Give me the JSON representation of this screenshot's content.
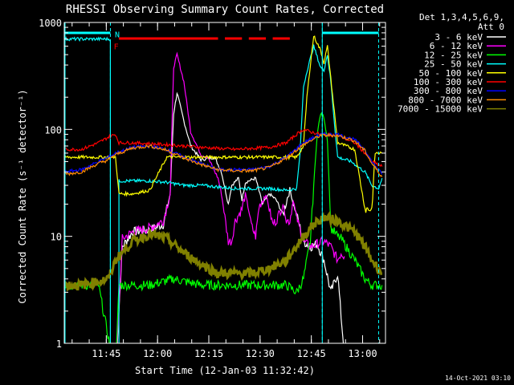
{
  "chart_data": {
    "type": "line",
    "title": "RHESSI Observing Summary Count Rates, Corrected",
    "xlabel": "Start Time (12-Jan-03 11:32:42)",
    "ylabel": "Corrected Count Rate (s⁻¹ detector⁻¹)",
    "yscale": "log",
    "ylim": [
      1,
      1000
    ],
    "xlim_minutes": [
      0,
      94
    ],
    "x_ticks": [
      {
        "label": "11:45",
        "min": 12.3
      },
      {
        "label": "12:00",
        "min": 27.3
      },
      {
        "label": "12:15",
        "min": 42.3
      },
      {
        "label": "12:30",
        "min": 57.3
      },
      {
        "label": "12:45",
        "min": 72.3
      },
      {
        "label": "13:00",
        "min": 87.3
      }
    ],
    "y_ticks": [
      {
        "label": "1",
        "value": 1
      },
      {
        "label": "10",
        "value": 10
      },
      {
        "label": "100",
        "value": 100
      },
      {
        "label": "1000",
        "value": 1000
      }
    ],
    "legend_header": [
      "Det 1,3,4,5,6,9,",
      "Att 0"
    ],
    "legend_position": "right",
    "series": [
      {
        "name": "3 - 6 keV",
        "color": "#ffffff",
        "points": [
          [
            15,
            0.5
          ],
          [
            17,
            8
          ],
          [
            20,
            11
          ],
          [
            25,
            11.5
          ],
          [
            29,
            13
          ],
          [
            31,
            25
          ],
          [
            32,
            140
          ],
          [
            33,
            220
          ],
          [
            35,
            120
          ],
          [
            37,
            70
          ],
          [
            40,
            52
          ],
          [
            44,
            55
          ],
          [
            46,
            40
          ],
          [
            48,
            20
          ],
          [
            49,
            30
          ],
          [
            51,
            35
          ],
          [
            52,
            22
          ],
          [
            53,
            32
          ],
          [
            56,
            35
          ],
          [
            58,
            20
          ],
          [
            60,
            25
          ],
          [
            62,
            22
          ],
          [
            64,
            16
          ],
          [
            66,
            28
          ],
          [
            67,
            20
          ],
          [
            68,
            16
          ],
          [
            70,
            9
          ],
          [
            72,
            8
          ],
          [
            74,
            8.5
          ],
          [
            76,
            6
          ],
          [
            78,
            3
          ],
          [
            80,
            4.5
          ],
          [
            81,
            1.8
          ],
          [
            82,
            0.8
          ]
        ]
      },
      {
        "name": "6 - 12 keV",
        "color": "#ff00ff",
        "points": [
          [
            15,
            0.5
          ],
          [
            17,
            9.5
          ],
          [
            20,
            11
          ],
          [
            25,
            12
          ],
          [
            29,
            14
          ],
          [
            31,
            25
          ],
          [
            32,
            380
          ],
          [
            33,
            500
          ],
          [
            35,
            280
          ],
          [
            37,
            95
          ],
          [
            40,
            58
          ],
          [
            42,
            55
          ],
          [
            45,
            35
          ],
          [
            46,
            25
          ],
          [
            47,
            15
          ],
          [
            48,
            9
          ],
          [
            49,
            9
          ],
          [
            50,
            14
          ],
          [
            52,
            18
          ],
          [
            53,
            25
          ],
          [
            55,
            12
          ],
          [
            56,
            10
          ],
          [
            57,
            19
          ],
          [
            59,
            25
          ],
          [
            60,
            18
          ],
          [
            61,
            13
          ],
          [
            62,
            14
          ],
          [
            64,
            20
          ],
          [
            65,
            14
          ],
          [
            66,
            14
          ],
          [
            67,
            22
          ],
          [
            68,
            15
          ],
          [
            70,
            9
          ],
          [
            72,
            8
          ],
          [
            74,
            8.5
          ],
          [
            76,
            9
          ],
          [
            78,
            8
          ],
          [
            80,
            6
          ],
          [
            81,
            7
          ],
          [
            82,
            6.5
          ]
        ]
      },
      {
        "name": "12 - 25 keV",
        "color": "#00ff00",
        "points": [
          [
            0,
            3.5
          ],
          [
            10,
            3.5
          ],
          [
            15,
            0.5
          ],
          [
            16,
            3.5
          ],
          [
            25,
            3.5
          ],
          [
            32,
            4
          ],
          [
            40,
            3.5
          ],
          [
            50,
            3.5
          ],
          [
            60,
            3.5
          ],
          [
            65,
            3.5
          ],
          [
            68,
            3
          ],
          [
            70,
            4
          ],
          [
            72,
            9
          ],
          [
            73,
            30
          ],
          [
            74,
            90
          ],
          [
            75,
            140
          ],
          [
            76,
            130
          ],
          [
            77,
            80
          ],
          [
            78,
            12
          ],
          [
            80,
            10
          ],
          [
            81,
            9.5
          ],
          [
            85,
            6
          ],
          [
            88,
            4
          ],
          [
            90,
            3.5
          ],
          [
            93,
            3.5
          ]
        ]
      },
      {
        "name": "25 - 50 keV",
        "color": "#00ffff",
        "points": [
          [
            0,
            700
          ],
          [
            13.5,
            700
          ],
          [
            13.5,
            0.5
          ],
          [
            16,
            0.5
          ],
          [
            16,
            33
          ],
          [
            20,
            33
          ],
          [
            25,
            33
          ],
          [
            30,
            32
          ],
          [
            35,
            30
          ],
          [
            40,
            30
          ],
          [
            50,
            28
          ],
          [
            60,
            28
          ],
          [
            65,
            27
          ],
          [
            68,
            28
          ],
          [
            69,
            60
          ],
          [
            70,
            250
          ],
          [
            71,
            350
          ],
          [
            73,
            600
          ],
          [
            75,
            380
          ],
          [
            76,
            360
          ],
          [
            77,
            500
          ],
          [
            78,
            280
          ],
          [
            79,
            120
          ],
          [
            80,
            55
          ],
          [
            84,
            50
          ],
          [
            88,
            40
          ],
          [
            90,
            30
          ],
          [
            92,
            28
          ],
          [
            93,
            35
          ]
        ]
      },
      {
        "name": "50 - 100 keV",
        "color": "#ffff00",
        "points": [
          [
            0,
            55
          ],
          [
            5,
            55
          ],
          [
            12,
            55
          ],
          [
            15,
            55
          ],
          [
            16,
            25
          ],
          [
            20,
            25
          ],
          [
            25,
            27
          ],
          [
            30,
            55
          ],
          [
            40,
            55
          ],
          [
            50,
            55
          ],
          [
            60,
            55
          ],
          [
            65,
            55
          ],
          [
            68,
            55
          ],
          [
            70,
            70
          ],
          [
            71,
            200
          ],
          [
            72,
            400
          ],
          [
            73,
            750
          ],
          [
            75,
            550
          ],
          [
            76,
            420
          ],
          [
            77,
            600
          ],
          [
            78,
            300
          ],
          [
            80,
            75
          ],
          [
            85,
            65
          ],
          [
            88,
            18
          ],
          [
            90,
            18
          ],
          [
            91,
            60
          ],
          [
            93,
            60
          ]
        ]
      },
      {
        "name": "100 - 300 keV",
        "color": "#ff0000",
        "points": [
          [
            0,
            65
          ],
          [
            5,
            65
          ],
          [
            10,
            75
          ],
          [
            13,
            85
          ],
          [
            15,
            90
          ],
          [
            16,
            75
          ],
          [
            20,
            75
          ],
          [
            30,
            72
          ],
          [
            40,
            68
          ],
          [
            50,
            65
          ],
          [
            60,
            68
          ],
          [
            65,
            75
          ],
          [
            68,
            90
          ],
          [
            70,
            100
          ],
          [
            72,
            95
          ],
          [
            75,
            90
          ],
          [
            80,
            88
          ],
          [
            85,
            75
          ],
          [
            88,
            60
          ],
          [
            90,
            50
          ],
          [
            93,
            45
          ]
        ]
      },
      {
        "name": "300 - 800 keV",
        "color": "#0000ff",
        "points": [
          [
            0,
            40
          ],
          [
            5,
            42
          ],
          [
            10,
            50
          ],
          [
            13,
            55
          ],
          [
            15,
            60
          ],
          [
            20,
            68
          ],
          [
            25,
            70
          ],
          [
            30,
            65
          ],
          [
            35,
            55
          ],
          [
            40,
            48
          ],
          [
            45,
            42
          ],
          [
            50,
            42
          ],
          [
            55,
            42
          ],
          [
            60,
            45
          ],
          [
            65,
            55
          ],
          [
            70,
            75
          ],
          [
            75,
            90
          ],
          [
            80,
            90
          ],
          [
            85,
            80
          ],
          [
            88,
            65
          ],
          [
            90,
            50
          ],
          [
            93,
            38
          ]
        ]
      },
      {
        "name": "800 - 7000 keV",
        "color": "#ff8c00",
        "points": [
          [
            0,
            38
          ],
          [
            5,
            40
          ],
          [
            10,
            48
          ],
          [
            13,
            52
          ],
          [
            15,
            58
          ],
          [
            20,
            67
          ],
          [
            25,
            70
          ],
          [
            30,
            64
          ],
          [
            35,
            54
          ],
          [
            40,
            47
          ],
          [
            45,
            42
          ],
          [
            50,
            41
          ],
          [
            55,
            41
          ],
          [
            60,
            44
          ],
          [
            65,
            54
          ],
          [
            70,
            72
          ],
          [
            75,
            88
          ],
          [
            80,
            88
          ],
          [
            85,
            78
          ],
          [
            88,
            63
          ],
          [
            90,
            48
          ],
          [
            93,
            36
          ]
        ]
      },
      {
        "name": "7000 - 15000 keV",
        "color": "#808000",
        "points": [
          [
            0,
            3.5
          ],
          [
            5,
            3.5
          ],
          [
            10,
            3.8
          ],
          [
            13,
            4
          ],
          [
            15,
            6
          ],
          [
            20,
            9
          ],
          [
            25,
            10.5
          ],
          [
            30,
            9.5
          ],
          [
            35,
            7
          ],
          [
            40,
            5.5
          ],
          [
            45,
            4.5
          ],
          [
            50,
            4.5
          ],
          [
            55,
            4.5
          ],
          [
            60,
            5
          ],
          [
            65,
            6
          ],
          [
            70,
            10
          ],
          [
            73,
            13
          ],
          [
            76,
            15
          ],
          [
            80,
            14
          ],
          [
            85,
            11
          ],
          [
            88,
            8
          ],
          [
            90,
            6
          ],
          [
            93,
            4.5
          ]
        ]
      }
    ],
    "annotations": [
      {
        "text": "N",
        "min": 15.5,
        "value": 780,
        "color": "#00ffff"
      },
      {
        "text": "F",
        "min": 15.2,
        "value": 600,
        "color": "#ff0000"
      }
    ],
    "night_intervals": [
      [
        0,
        13.5
      ],
      [
        75.5,
        92
      ]
    ],
    "flare_segments": [
      [
        16,
        45
      ],
      [
        47,
        52
      ],
      [
        54,
        59
      ],
      [
        61,
        66
      ]
    ],
    "night_dashed_lines": [
      13.5,
      75.5,
      92
    ]
  },
  "footer_timestamp": "14-Oct-2021 03:10"
}
